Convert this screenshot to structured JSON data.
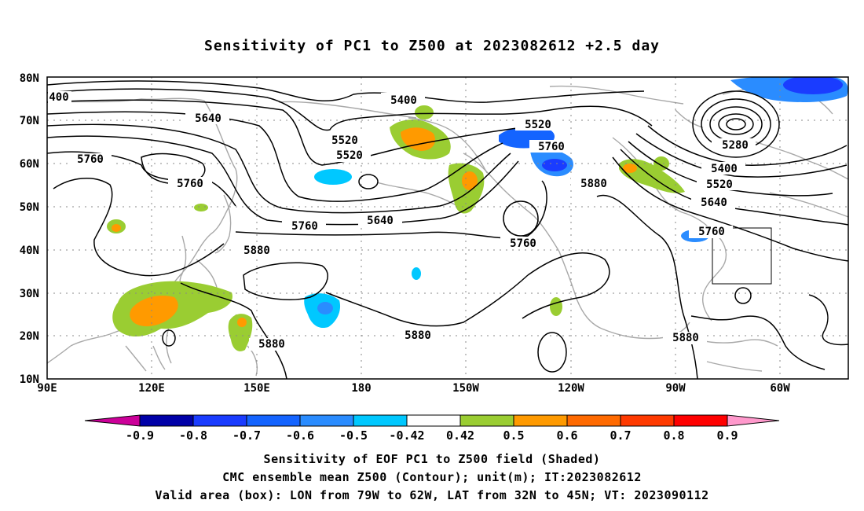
{
  "title": "Sensitivity of PC1 to Z500 at 2023082612 +2.5 day",
  "lat_labels": [
    "80N",
    "70N",
    "60N",
    "50N",
    "40N",
    "30N",
    "20N",
    "10N"
  ],
  "lon_labels": [
    "90E",
    "120E",
    "150E",
    "180",
    "150W",
    "120W",
    "90W",
    "60W"
  ],
  "contours": [
    "5400",
    "5520",
    "5640",
    "5760",
    "5880",
    "5280",
    "400"
  ],
  "colorbar": {
    "ticks": [
      "-0.9",
      "-0.8",
      "-0.7",
      "-0.6",
      "-0.5",
      "-0.42",
      "0.42",
      "0.5",
      "0.6",
      "0.7",
      "0.8",
      "0.9"
    ],
    "colors": [
      "#0000a8",
      "#1a3cff",
      "#1464ff",
      "#2a8cff",
      "#00c8ff",
      "#ffffff",
      "#9acd32",
      "#ff9a00",
      "#ff6a00",
      "#ff3a00",
      "#ff0000"
    ],
    "low_end_color": "#cc0099",
    "high_end_color": "#ff99cc"
  },
  "caption_lines": [
    "Sensitivity of EOF PC1 to Z500 field (Shaded)",
    "CMC ensemble mean Z500 (Contour); unit(m); IT:2023082612",
    "Valid area (box): LON from 79W to 62W, LAT from 32N to 45N; VT: 2023090112"
  ]
}
